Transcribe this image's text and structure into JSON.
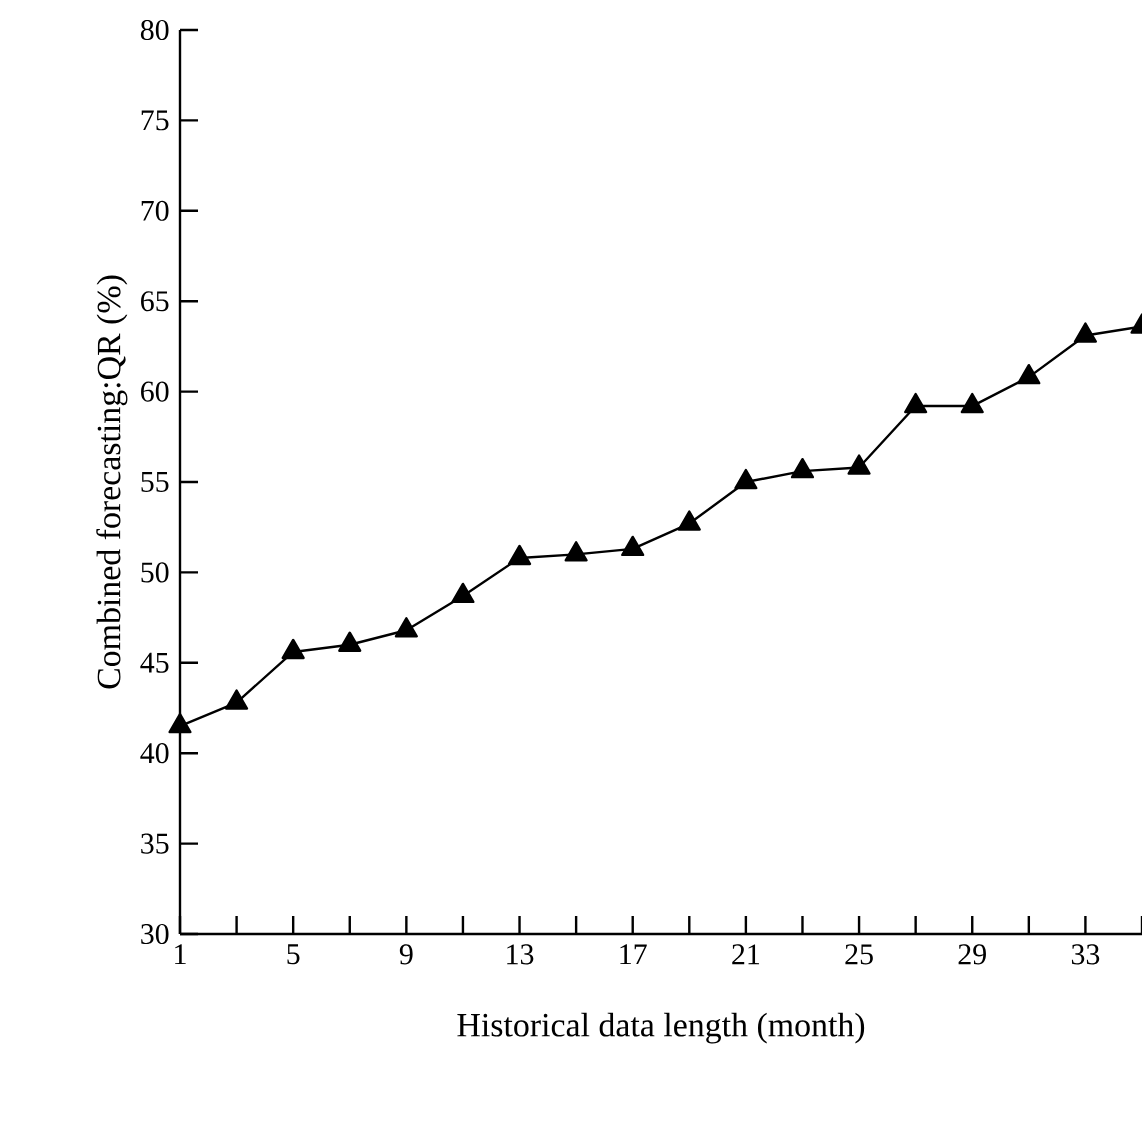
{
  "chart_data": {
    "type": "line",
    "xlabel": "Historical data length (month)",
    "ylabel": "Combined forecasting:QR (%)",
    "x": [
      1,
      3,
      5,
      7,
      9,
      11,
      13,
      15,
      17,
      19,
      21,
      23,
      25,
      27,
      29,
      31,
      33,
      35
    ],
    "series": [
      {
        "color": "#000000",
        "values": [
          41.5,
          42.8,
          45.6,
          46.0,
          46.8,
          48.7,
          50.8,
          51.0,
          51.3,
          52.7,
          55.0,
          55.6,
          55.8,
          59.2,
          59.2,
          60.8,
          63.1,
          63.6
        ]
      }
    ],
    "xlim": [
      1,
      35
    ],
    "xticks": [
      1,
      {
        "value": 3,
        "label": null
      },
      5,
      {
        "value": 7,
        "label": null
      },
      9,
      {
        "value": 11,
        "label": null
      },
      13,
      {
        "value": 15,
        "label": null
      },
      17,
      {
        "value": 19,
        "label": null
      },
      21,
      {
        "value": 23,
        "label": null
      },
      25,
      {
        "value": 27,
        "label": null
      },
      29,
      {
        "value": 31,
        "label": null
      },
      33,
      {
        "value": 35,
        "label": null
      }
    ],
    "ylim": [
      30,
      80
    ],
    "yticks": [
      30,
      35,
      40,
      45,
      50,
      55,
      60,
      65,
      70,
      75,
      80
    ],
    "marker": "triangle",
    "line_style": "solid"
  }
}
